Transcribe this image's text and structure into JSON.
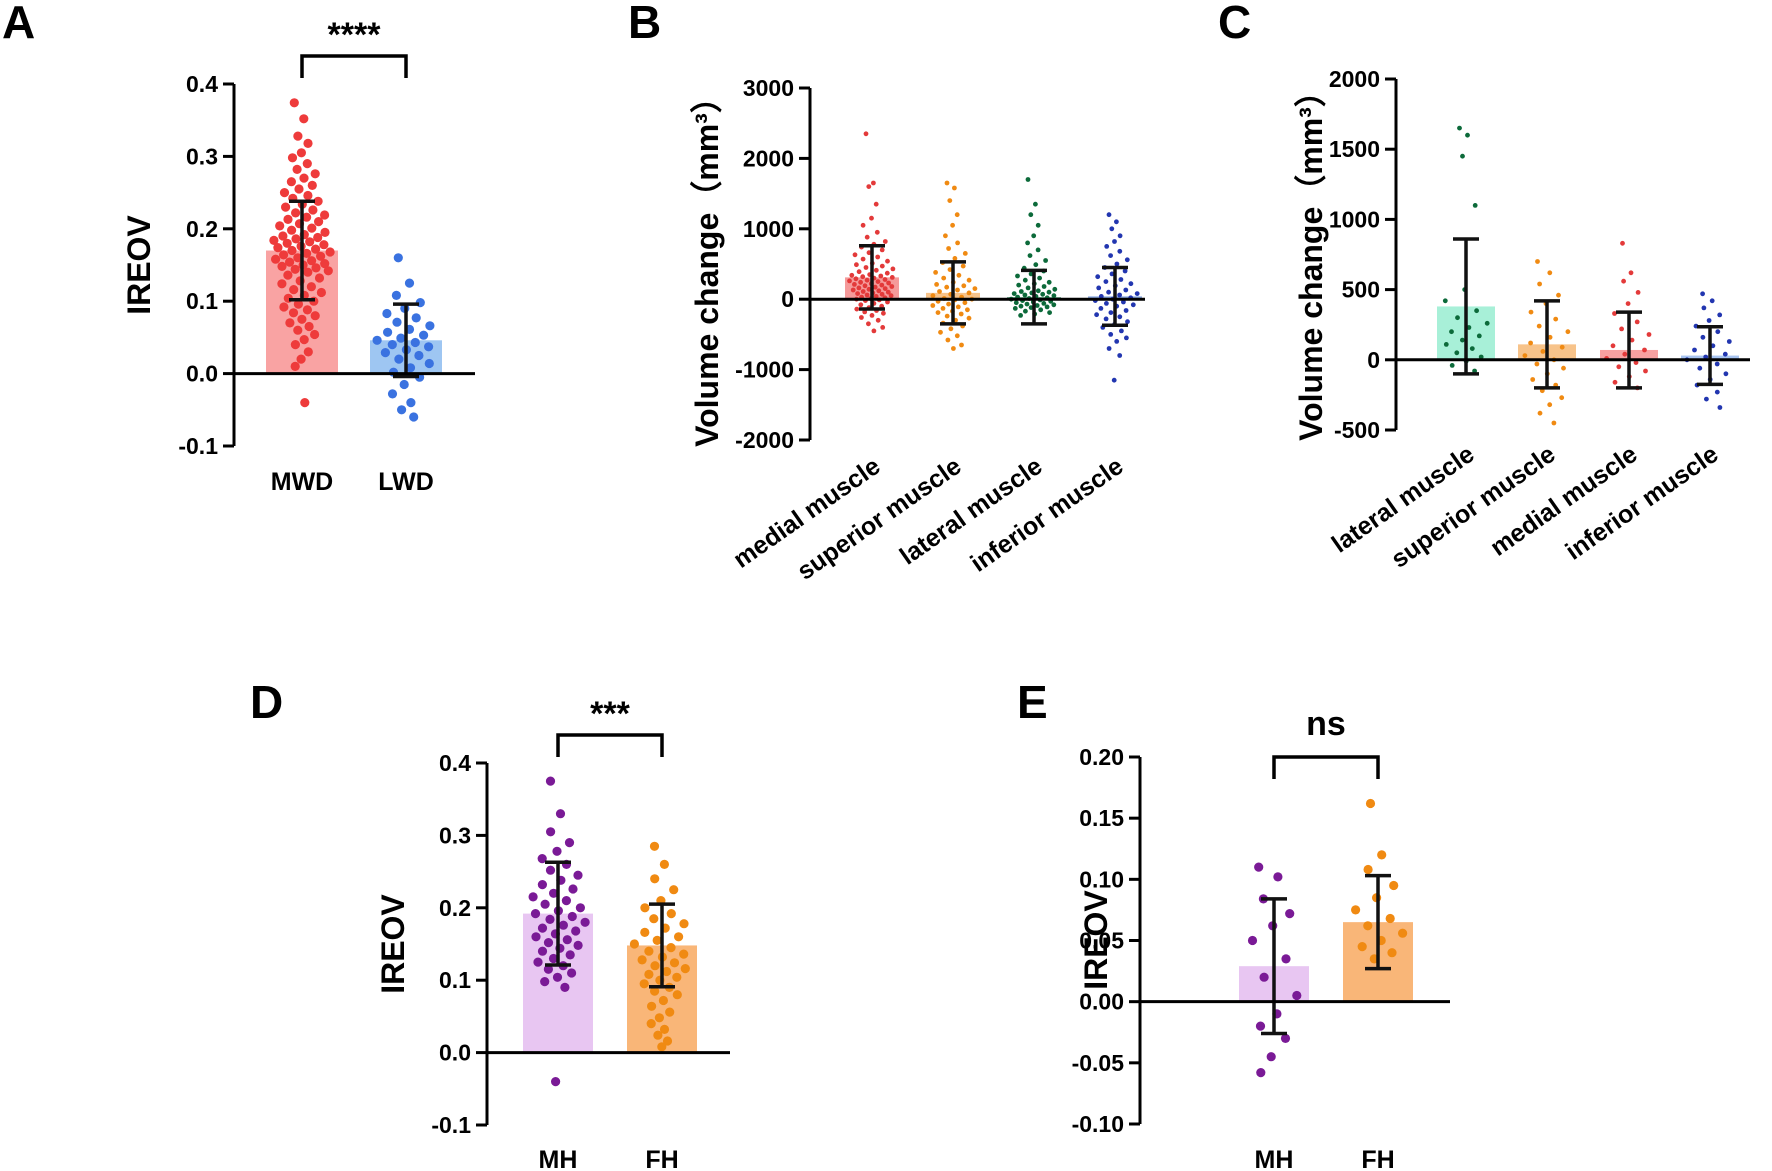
{
  "chart_data": [
    {
      "panel": "A",
      "type": "bar",
      "ylabel": "IREOV",
      "yticks": [
        "0.4",
        "0.3",
        "0.2",
        "0.1",
        "0.0",
        "-0.1"
      ],
      "ylim": [
        -0.1,
        0.4
      ],
      "categories": [
        "MWD",
        "LWD"
      ],
      "values": [
        0.17,
        0.046
      ],
      "sd": [
        0.068,
        0.05
      ],
      "bar_colors": [
        "#f9a3a3",
        "#9ec6f2"
      ],
      "point_colors": [
        "#ee3b3b",
        "#3a72e0"
      ],
      "points": [
        [
          0.374,
          0.352,
          0.328,
          0.318,
          0.305,
          0.298,
          0.29,
          0.282,
          0.276,
          0.27,
          0.265,
          0.26,
          0.255,
          0.25,
          0.246,
          0.242,
          0.238,
          0.234,
          0.23,
          0.226,
          0.222,
          0.219,
          0.216,
          0.213,
          0.21,
          0.207,
          0.204,
          0.201,
          0.198,
          0.195,
          0.192,
          0.19,
          0.188,
          0.186,
          0.184,
          0.182,
          0.18,
          0.178,
          0.176,
          0.174,
          0.172,
          0.17,
          0.168,
          0.166,
          0.164,
          0.162,
          0.16,
          0.158,
          0.156,
          0.154,
          0.152,
          0.15,
          0.148,
          0.146,
          0.144,
          0.142,
          0.14,
          0.136,
          0.132,
          0.128,
          0.124,
          0.12,
          0.116,
          0.112,
          0.108,
          0.104,
          0.1,
          0.096,
          0.092,
          0.088,
          0.084,
          0.08,
          0.075,
          0.07,
          0.065,
          0.06,
          0.054,
          0.047,
          0.04,
          0.03,
          0.02,
          0.01,
          -0.04
        ],
        [
          0.16,
          0.125,
          0.108,
          0.098,
          0.09,
          0.083,
          0.077,
          0.071,
          0.066,
          0.061,
          0.057,
          0.053,
          0.049,
          0.046,
          0.043,
          0.04,
          0.037,
          0.033,
          0.029,
          0.025,
          0.02,
          0.014,
          0.008,
          0.002,
          -0.005,
          -0.015,
          -0.028,
          -0.04,
          -0.05,
          -0.06
        ]
      ],
      "significance": "****"
    },
    {
      "panel": "B",
      "type": "bar",
      "ylabel": "Volume change（mm³）",
      "yticks": [
        "3000",
        "2000",
        "1000",
        "0",
        "-1000",
        "-2000"
      ],
      "ylim": [
        -2000,
        3000
      ],
      "categories": [
        "medial muscle",
        "superior muscle",
        "lateral muscle",
        "inferior muscle"
      ],
      "values": [
        310,
        90,
        30,
        40
      ],
      "sd": [
        450,
        440,
        380,
        410
      ],
      "bar_colors": [
        "#f59a9a",
        "#f7c38a",
        "#66a585",
        "#8aa8e0"
      ],
      "point_colors": [
        "#e33a3a",
        "#f08a12",
        "#0c6a3a",
        "#2236b0"
      ],
      "points": [
        [
          2350,
          1650,
          1600,
          1350,
          1150,
          1050,
          950,
          880,
          820,
          780,
          740,
          700,
          660,
          630,
          600,
          570,
          540,
          510,
          490,
          470,
          450,
          430,
          410,
          390,
          370,
          350,
          340,
          330,
          320,
          310,
          300,
          290,
          280,
          270,
          260,
          250,
          240,
          230,
          220,
          210,
          200,
          190,
          180,
          170,
          160,
          150,
          140,
          130,
          120,
          110,
          100,
          90,
          80,
          70,
          60,
          50,
          40,
          30,
          20,
          10,
          0,
          -10,
          -20,
          -40,
          -60,
          -80,
          -100,
          -120,
          -140,
          -160,
          -180,
          -200,
          -230,
          -260,
          -300,
          -350,
          -400,
          -450
        ],
        [
          1650,
          1580,
          1400,
          1200,
          1050,
          900,
          800,
          720,
          650,
          580,
          520,
          470,
          420,
          380,
          340,
          300,
          270,
          240,
          210,
          190,
          170,
          150,
          130,
          110,
          90,
          70,
          50,
          30,
          10,
          0,
          -10,
          -30,
          -50,
          -70,
          -90,
          -110,
          -130,
          -150,
          -170,
          -190,
          -210,
          -240,
          -270,
          -300,
          -340,
          -380,
          -420,
          -470,
          -520,
          -580,
          -650,
          -700
        ],
        [
          1700,
          1350,
          1200,
          1050,
          900,
          800,
          700,
          620,
          550,
          490,
          440,
          400,
          360,
          330,
          300,
          270,
          240,
          220,
          200,
          180,
          160,
          140,
          120,
          110,
          100,
          90,
          80,
          70,
          60,
          50,
          40,
          30,
          20,
          10,
          0,
          -10,
          -20,
          -30,
          -40,
          -50,
          -60,
          -70,
          -80,
          -90,
          -100,
          -110,
          -120,
          -130,
          -150,
          -170,
          -190,
          -210,
          -230
        ],
        [
          1200,
          1100,
          1000,
          900,
          820,
          750,
          680,
          620,
          560,
          500,
          450,
          400,
          360,
          320,
          280,
          250,
          220,
          190,
          160,
          130,
          100,
          80,
          60,
          40,
          20,
          0,
          -20,
          -40,
          -60,
          -80,
          -100,
          -130,
          -160,
          -190,
          -220,
          -250,
          -280,
          -320,
          -360,
          -400,
          -450,
          -500,
          -550,
          -600,
          -700,
          -800,
          -1150
        ]
      ]
    },
    {
      "panel": "C",
      "type": "bar",
      "ylabel": "Volume change（mm³）",
      "yticks": [
        "2000",
        "1500",
        "1000",
        "500",
        "0",
        "-500"
      ],
      "ylim": [
        -500,
        2000
      ],
      "categories": [
        "lateral muscle",
        "superior muscle",
        "medial muscle",
        "inferior muscle"
      ],
      "values": [
        380,
        110,
        70,
        30
      ],
      "sd": [
        480,
        310,
        270,
        205
      ],
      "bar_colors": [
        "#a8f0d8",
        "#f7c38a",
        "#f7a1a1",
        "#a8c4f0"
      ],
      "point_colors": [
        "#0c6a3a",
        "#f08a12",
        "#e33a3a",
        "#2236b0"
      ],
      "points": [
        [
          1650,
          1600,
          1450,
          1100,
          500,
          420,
          350,
          300,
          260,
          230,
          200,
          170,
          140,
          110,
          80,
          50,
          20,
          -10,
          -40,
          -80
        ],
        [
          700,
          620,
          540,
          460,
          400,
          340,
          290,
          240,
          200,
          160,
          120,
          90,
          60,
          30,
          0,
          -30,
          -60,
          -100,
          -140,
          -180,
          -220,
          -270,
          -320,
          -380,
          -450
        ],
        [
          830,
          620,
          560,
          480,
          400,
          330,
          270,
          220,
          180,
          140,
          100,
          70,
          40,
          10,
          -20,
          -50,
          -80,
          -120,
          -160,
          -200
        ],
        [
          470,
          420,
          370,
          320,
          280,
          240,
          200,
          160,
          130,
          100,
          70,
          40,
          20,
          0,
          -30,
          -60,
          -100,
          -140,
          -180,
          -230,
          -280,
          -340
        ]
      ]
    },
    {
      "panel": "D",
      "type": "bar",
      "ylabel": "IREOV",
      "yticks": [
        "0.4",
        "0.3",
        "0.2",
        "0.1",
        "0.0",
        "-0.1"
      ],
      "ylim": [
        -0.1,
        0.4
      ],
      "categories": [
        "MH",
        "FH"
      ],
      "values": [
        0.192,
        0.148
      ],
      "sd": [
        0.071,
        0.057
      ],
      "bar_colors": [
        "#e8c6f2",
        "#f9b678"
      ],
      "point_colors": [
        "#7a1a96",
        "#f08a12"
      ],
      "points": [
        [
          0.375,
          0.33,
          0.305,
          0.29,
          0.278,
          0.268,
          0.26,
          0.252,
          0.245,
          0.238,
          0.232,
          0.226,
          0.22,
          0.215,
          0.21,
          0.205,
          0.2,
          0.196,
          0.192,
          0.188,
          0.184,
          0.18,
          0.176,
          0.172,
          0.168,
          0.164,
          0.16,
          0.156,
          0.152,
          0.148,
          0.144,
          0.14,
          0.135,
          0.13,
          0.125,
          0.12,
          0.115,
          0.11,
          0.104,
          0.098,
          0.09,
          -0.04
        ],
        [
          0.285,
          0.26,
          0.24,
          0.225,
          0.21,
          0.2,
          0.192,
          0.185,
          0.178,
          0.172,
          0.166,
          0.16,
          0.155,
          0.15,
          0.145,
          0.14,
          0.136,
          0.132,
          0.128,
          0.124,
          0.12,
          0.116,
          0.112,
          0.108,
          0.104,
          0.1,
          0.095,
          0.09,
          0.085,
          0.08,
          0.072,
          0.064,
          0.056,
          0.048,
          0.04,
          0.032,
          0.024,
          0.016,
          0.008
        ]
      ],
      "significance": "***"
    },
    {
      "panel": "E",
      "type": "bar",
      "ylabel": "IREOV",
      "yticks": [
        "0.20",
        "0.15",
        "0.10",
        "0.05",
        "0.00",
        "-0.05",
        "-0.10"
      ],
      "ylim": [
        -0.1,
        0.2
      ],
      "categories": [
        "MH",
        "FH"
      ],
      "values": [
        0.029,
        0.065
      ],
      "sd": [
        0.055,
        0.038
      ],
      "bar_colors": [
        "#e8c6f2",
        "#f9b678"
      ],
      "point_colors": [
        "#7a1a96",
        "#f08a12"
      ],
      "points": [
        [
          0.11,
          0.102,
          0.084,
          0.072,
          0.062,
          0.05,
          0.035,
          0.02,
          0.005,
          -0.01,
          -0.02,
          -0.03,
          -0.045,
          -0.058
        ],
        [
          0.162,
          0.12,
          0.108,
          0.095,
          0.085,
          0.075,
          0.068,
          0.062,
          0.056,
          0.05,
          0.045,
          0.04,
          0.035
        ]
      ],
      "significance": "ns"
    }
  ]
}
